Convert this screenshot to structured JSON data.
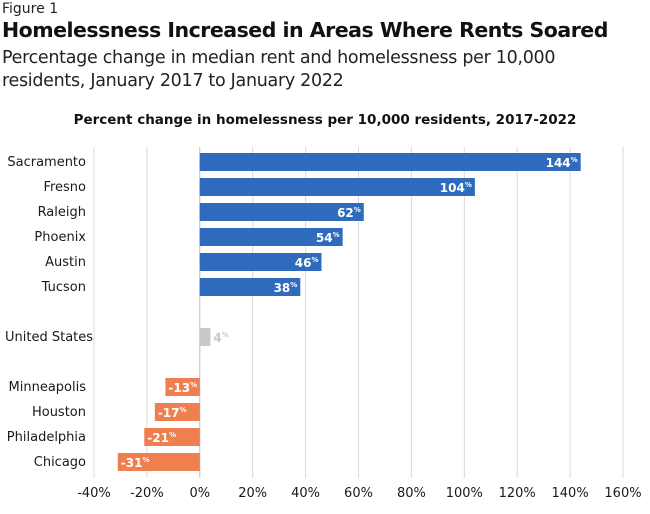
{
  "figure_label": "Figure 1",
  "title": "Homelessness Increased in Areas Where Rents Soared",
  "subtitle": "Percentage change in median rent and homelessness per 10,000 residents, January 2017 to January 2022",
  "colors": {
    "increase": "#2e6bbd",
    "decrease": "#f07f4f",
    "us": "#c8c8c8",
    "grid": "#d9d9d9"
  },
  "chart_data": {
    "type": "bar",
    "orientation": "horizontal",
    "title": "Percent change in homelessness per 10,000 residents, 2017-2022",
    "categories": [
      "Sacramento",
      "Fresno",
      "Raleigh",
      "Phoenix",
      "Austin",
      "Tucson",
      "United States",
      "Minneapolis",
      "Houston",
      "Philadelphia",
      "Chicago"
    ],
    "values": [
      144,
      104,
      62,
      54,
      46,
      38,
      4,
      -13,
      -17,
      -21,
      -31
    ],
    "value_suffix": "%",
    "xlim": [
      -40,
      160
    ],
    "xticks": [
      -40,
      -20,
      0,
      20,
      40,
      60,
      80,
      100,
      120,
      140,
      160
    ],
    "xtick_labels": [
      "-40%",
      "-20%",
      "0%",
      "20%",
      "40%",
      "60%",
      "80%",
      "100%",
      "120%",
      "140%",
      "160%"
    ],
    "grid": true
  }
}
